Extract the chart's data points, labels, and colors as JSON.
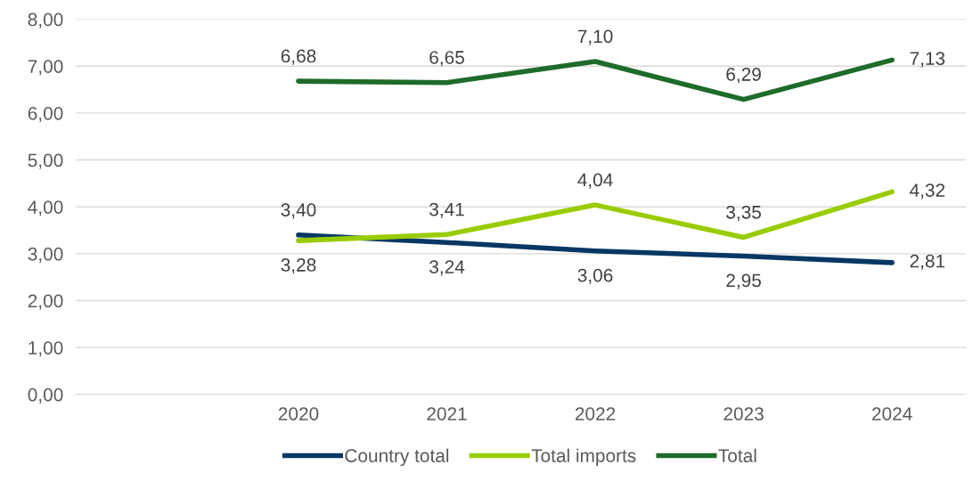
{
  "chart_data": {
    "type": "line",
    "categories": [
      null,
      "2020",
      "2021",
      "2022",
      "2023",
      "2024"
    ],
    "series": [
      {
        "name": "Country total",
        "color": "#073763",
        "values": [
          null,
          3.4,
          3.24,
          3.06,
          2.95,
          2.81
        ],
        "value_labels": [
          null,
          "3,40",
          "3,24",
          "3,06",
          "2,95",
          "2,81"
        ]
      },
      {
        "name": "Total imports",
        "color": "#99cc00",
        "values": [
          null,
          3.28,
          3.41,
          4.04,
          3.35,
          4.32
        ],
        "value_labels": [
          null,
          "3,28",
          "3,41",
          "4,04",
          "3,35",
          "4,32"
        ]
      },
      {
        "name": "Total",
        "color": "#1e6b2a",
        "values": [
          null,
          6.68,
          6.65,
          7.1,
          6.29,
          7.13
        ],
        "value_labels": [
          null,
          "6,68",
          "6,65",
          "7,10",
          "6,29",
          "7,13"
        ]
      }
    ],
    "ylim": [
      0,
      8
    ],
    "yticks": [
      {
        "value": 0,
        "label": "0,00"
      },
      {
        "value": 1,
        "label": "1,00"
      },
      {
        "value": 2,
        "label": "2,00"
      },
      {
        "value": 3,
        "label": "3,00"
      },
      {
        "value": 4,
        "label": "4,00"
      },
      {
        "value": 5,
        "label": "5,00"
      },
      {
        "value": 6,
        "label": "6,00"
      },
      {
        "value": 7,
        "label": "7,00"
      },
      {
        "value": 8,
        "label": "8,00"
      }
    ],
    "grid": "y",
    "legend": "bottom",
    "marker": "none",
    "line_style": "solid"
  }
}
